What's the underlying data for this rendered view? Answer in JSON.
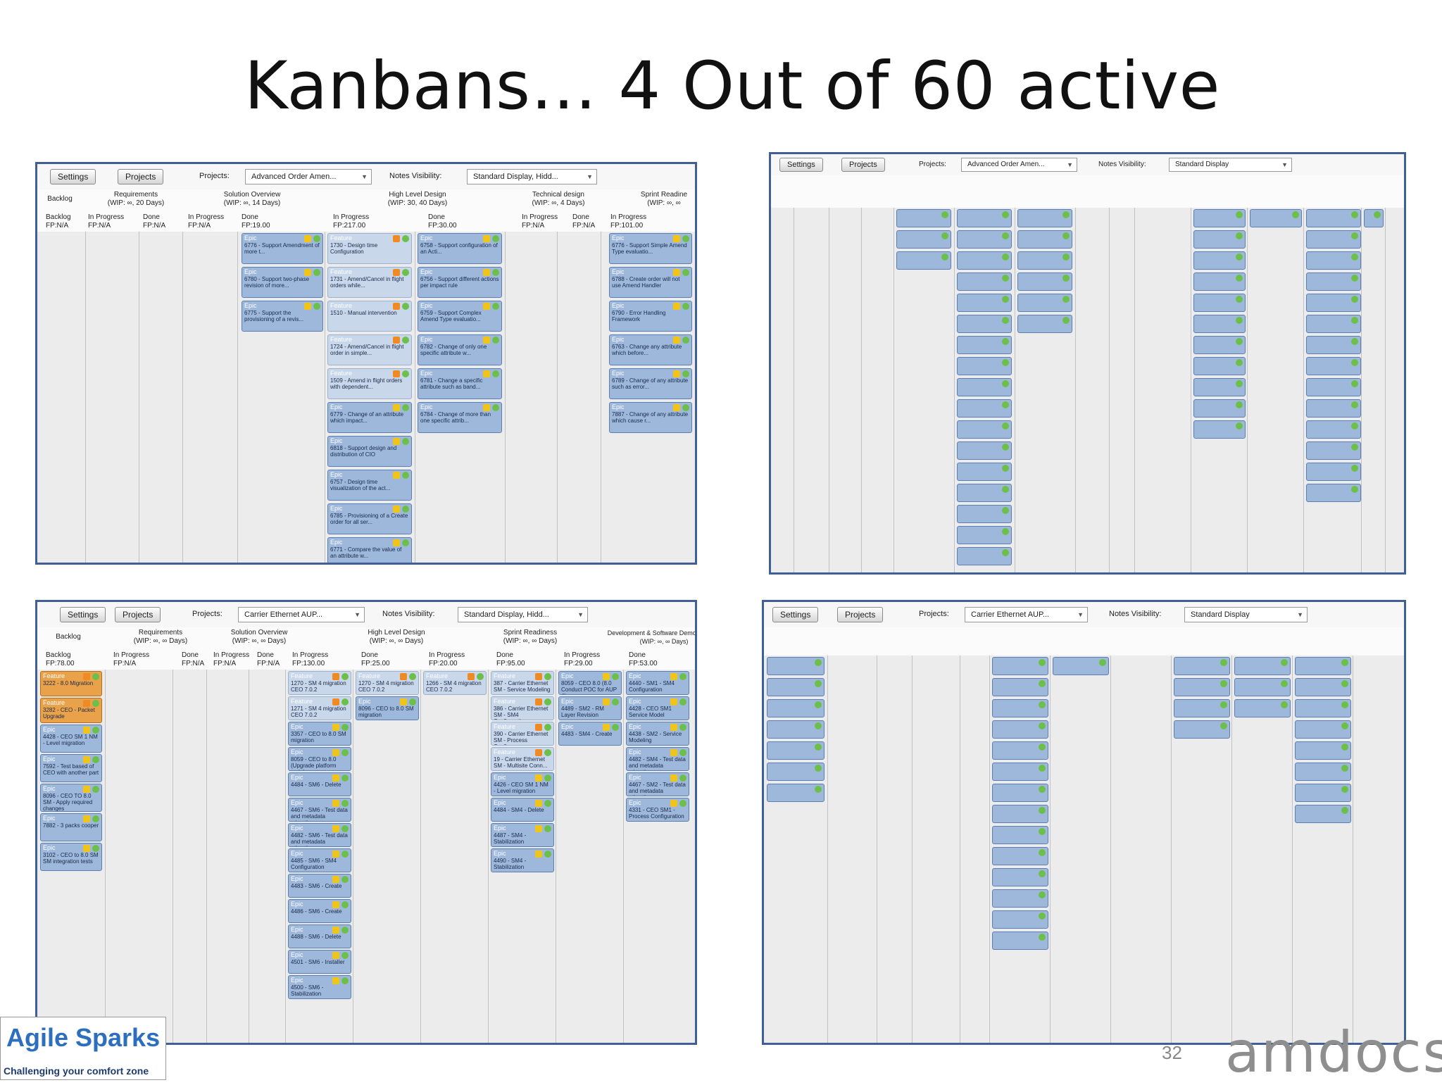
{
  "slide": {
    "title": "Kanbans… 4 Out of 60 active",
    "page_number": "32",
    "brand_right": "amdocs",
    "brand_left": "Agile Sparks",
    "brand_left_tagline": "Challenging your comfort zone"
  },
  "toolbar": {
    "settings": "Settings",
    "projects_btn": "Projects",
    "projects_label": "Projects:",
    "notes_label": "Notes Visibility:",
    "notes_label_short": "Notes Visibility:"
  },
  "boards": [
    {
      "project": "Advanced Order Amen...",
      "notes": "Standard Display, Hidd...",
      "stages": [
        {
          "name": "Backlog",
          "wip": ""
        },
        {
          "name": "Requirements",
          "wip": "(WIP: ∞, 20 Days)"
        },
        {
          "name": "Solution Overview",
          "wip": "(WIP: ∞, 14 Days)"
        },
        {
          "name": "High Level Design",
          "wip": "(WIP: 30, 40 Days)"
        },
        {
          "name": "Technical design",
          "wip": "(WIP: ∞, 4 Days)"
        },
        {
          "name": "Sprint Readine",
          "wip": "(WIP: ∞, ∞"
        }
      ],
      "columns": [
        {
          "name": "Backlog",
          "fp": "FP:N/A"
        },
        {
          "name": "In Progress",
          "fp": "FP:N/A"
        },
        {
          "name": "Done",
          "fp": "FP:N/A"
        },
        {
          "name": "In Progress",
          "fp": "FP:N/A"
        },
        {
          "name": "Done",
          "fp": "FP:19.00"
        },
        {
          "name": "In Progress",
          "fp": "FP:217.00"
        },
        {
          "name": "Done",
          "fp": "FP:30.00"
        },
        {
          "name": "In Progress",
          "fp": "FP:N/A"
        },
        {
          "name": "Done",
          "fp": "FP:N/A"
        },
        {
          "name": "In Progress",
          "fp": "FP:101.00"
        }
      ]
    },
    {
      "project": "Advanced Order Amen...",
      "notes": "Standard Display"
    },
    {
      "project": "Carrier Ethernet AUP...",
      "notes": "Standard Display, Hidd...",
      "stages": [
        {
          "name": "Backlog",
          "wip": ""
        },
        {
          "name": "Requirements",
          "wip": "(WIP: ∞, ∞ Days)"
        },
        {
          "name": "Solution Overview",
          "wip": "(WIP: ∞, ∞ Days)"
        },
        {
          "name": "High Level Design",
          "wip": "(WIP: ∞, ∞ Days)"
        },
        {
          "name": "Sprint Readiness",
          "wip": "(WIP: ∞, ∞ Days)"
        },
        {
          "name": "Development & Software Demonstration",
          "wip": "(WIP: ∞, ∞ Days)"
        }
      ],
      "columns": [
        {
          "name": "Backlog",
          "fp": "FP:78.00"
        },
        {
          "name": "In Progress",
          "fp": "FP:N/A"
        },
        {
          "name": "Done",
          "fp": "FP:N/A"
        },
        {
          "name": "In Progress",
          "fp": "FP:N/A"
        },
        {
          "name": "Done",
          "fp": "FP:N/A"
        },
        {
          "name": "In Progress",
          "fp": "FP:130.00"
        },
        {
          "name": "Done",
          "fp": "FP:25.00"
        },
        {
          "name": "In Progress",
          "fp": "FP:20.00"
        },
        {
          "name": "Done",
          "fp": "FP:95.00"
        },
        {
          "name": "In Progress",
          "fp": "FP:29.00"
        },
        {
          "name": "Done",
          "fp": "FP:53.00"
        }
      ]
    },
    {
      "project": "Carrier Ethernet AUP...",
      "notes": "Standard Display"
    }
  ],
  "cards_board1": [
    {
      "cat": "Epic",
      "text": "6776 - Support Amendment of more t..."
    },
    {
      "cat": "Epic",
      "text": "6780 - Support two-phase revision of more..."
    },
    {
      "cat": "Epic",
      "text": "6775 - Support the provisioning of a revis..."
    },
    {
      "cat": "Feature",
      "text": "1730 - Design time Configuration"
    },
    {
      "cat": "Feature",
      "text": "1731 - Amend/Cancel in flight orders while..."
    },
    {
      "cat": "Feature",
      "text": "1510 - Manual intervention"
    },
    {
      "cat": "Feature",
      "text": "1724 - Amend/Cancel in flight order in simple..."
    },
    {
      "cat": "Feature",
      "text": "1509 - Amend in flight orders with dependent..."
    },
    {
      "cat": "Epic",
      "text": "6779 - Change of an attribute which impact..."
    },
    {
      "cat": "Epic",
      "text": "6818 - Support design and distribution of CIO"
    },
    {
      "cat": "Epic",
      "text": "6757 - Design time visualization of the act..."
    },
    {
      "cat": "Epic",
      "text": "6785 - Provisioning of a Create order for all ser..."
    },
    {
      "cat": "Epic",
      "text": "6771 - Compare the value of an attribute w..."
    },
    {
      "cat": "Epic",
      "text": "6758 - Support configuration of an Acti..."
    },
    {
      "cat": "Epic",
      "text": "6756 - Support different actions per impact rule"
    },
    {
      "cat": "Epic",
      "text": "6759 - Support Complex Amend Type evaluatio..."
    },
    {
      "cat": "Epic",
      "text": "6782 - Change of only one specific attribute w..."
    },
    {
      "cat": "Epic",
      "text": "6781 - Change a specific attribute such as band..."
    },
    {
      "cat": "Epic",
      "text": "6784 - Change of more than one specific attrib..."
    },
    {
      "cat": "Epic",
      "text": "6776 - Support Simple Amend Type evaluatio..."
    },
    {
      "cat": "Epic",
      "text": "6788 - Create order will not use Amend Handler"
    },
    {
      "cat": "Epic",
      "text": "6790 - Error Handling Framework"
    },
    {
      "cat": "Epic",
      "text": "6763 - Change any attribute which before..."
    },
    {
      "cat": "Epic",
      "text": "6789 - Change of any attribute such as error..."
    },
    {
      "cat": "Epic",
      "text": "7887 - Change of any attribute which cause r..."
    }
  ],
  "cards_board3": [
    {
      "cat": "Feature",
      "text": "3222 - 8.0 Migration"
    },
    {
      "cat": "Feature",
      "text": "3282 - CEO - Packet Upgrade"
    },
    {
      "cat": "Epic",
      "text": "4428 - CEO SM 1 NM - Level migration"
    },
    {
      "cat": "Epic",
      "text": "7592 - Test based of CEO with another part"
    },
    {
      "cat": "Epic",
      "text": "8096 - CEO TO 8.0 SM - Apply required changes"
    },
    {
      "cat": "Epic",
      "text": "7882 - 3 packs cooper"
    },
    {
      "cat": "Epic",
      "text": "3102 - CEO to 8.0 SM SM integration tests"
    },
    {
      "cat": "Feature",
      "text": "1270 - SM 4 migration CEO 7.0.2"
    },
    {
      "cat": "Feature",
      "text": "1271 - SM 4 migration CEO 7.0.2"
    },
    {
      "cat": "Epic",
      "text": "3357 - CEO to 8.0 SM migration"
    },
    {
      "cat": "Epic",
      "text": "8059 - CEO to 8.0 (Upgrade platform main)"
    },
    {
      "cat": "Epic",
      "text": "4484 - SM6 - Delete"
    },
    {
      "cat": "Epic",
      "text": "4467 - SM6 - Test data and metadata migration"
    },
    {
      "cat": "Epic",
      "text": "4482 - SM6 - Test data and metadata migration"
    },
    {
      "cat": "Epic",
      "text": "4485 - SM6 - SM4 Configuration"
    },
    {
      "cat": "Epic",
      "text": "4483 - SM6 - Create"
    },
    {
      "cat": "Epic",
      "text": "4486 - SM6 - Create"
    },
    {
      "cat": "Epic",
      "text": "4488 - SM6 - Delete"
    },
    {
      "cat": "Epic",
      "text": "4501 - SM6 - Installer"
    },
    {
      "cat": "Epic",
      "text": "4500 - SM6 - Stabilization"
    },
    {
      "cat": "Feature",
      "text": "1270 - SM 4 migration CEO 7.0.2"
    },
    {
      "cat": "Epic",
      "text": "8096 - CEO to 8.0 SM migration"
    },
    {
      "cat": "Feature",
      "text": "1266 - SM 4 migration CEO 7.0.2"
    },
    {
      "cat": "Feature",
      "text": "387 - Carrier Ethernet SM - Service Modeling"
    },
    {
      "cat": "Feature",
      "text": "386 - Carrier Ethernet SM - SM4 Configuration"
    },
    {
      "cat": "Feature",
      "text": "390 - Carrier Ethernet SM - Process Configu..."
    },
    {
      "cat": "Feature",
      "text": "19 - Carrier Ethernet SM - Multisite Conn..."
    },
    {
      "cat": "Epic",
      "text": "4426 - CEO SM 1 NM - Level migration"
    },
    {
      "cat": "Epic",
      "text": "4484 - SM4 - Delete"
    },
    {
      "cat": "Epic",
      "text": "4487 - SM4 - Stabilization"
    },
    {
      "cat": "Epic",
      "text": "4490 - SM4 - Stabilization"
    },
    {
      "cat": "Epic",
      "text": "8059 - CEO 8.0 (8.0 Conduct POC for AUP 4)"
    },
    {
      "cat": "Epic",
      "text": "4489 - SM2 - RM Layer Revision"
    },
    {
      "cat": "Epic",
      "text": "4483 - SM4 - Create"
    },
    {
      "cat": "Epic",
      "text": "4440 - SM1 - SM4 Configuration"
    },
    {
      "cat": "Epic",
      "text": "4428 - CEO SM1 Service Model"
    },
    {
      "cat": "Epic",
      "text": "4438 - SM2 - Service Modeling"
    },
    {
      "cat": "Epic",
      "text": "4482 - SM4 - Test data and metadata migration"
    },
    {
      "cat": "Epic",
      "text": "4467 - SM2 - Test data and metadata migration"
    },
    {
      "cat": "Epic",
      "text": "4331 - CEO SM1 - Process Configuration"
    }
  ]
}
